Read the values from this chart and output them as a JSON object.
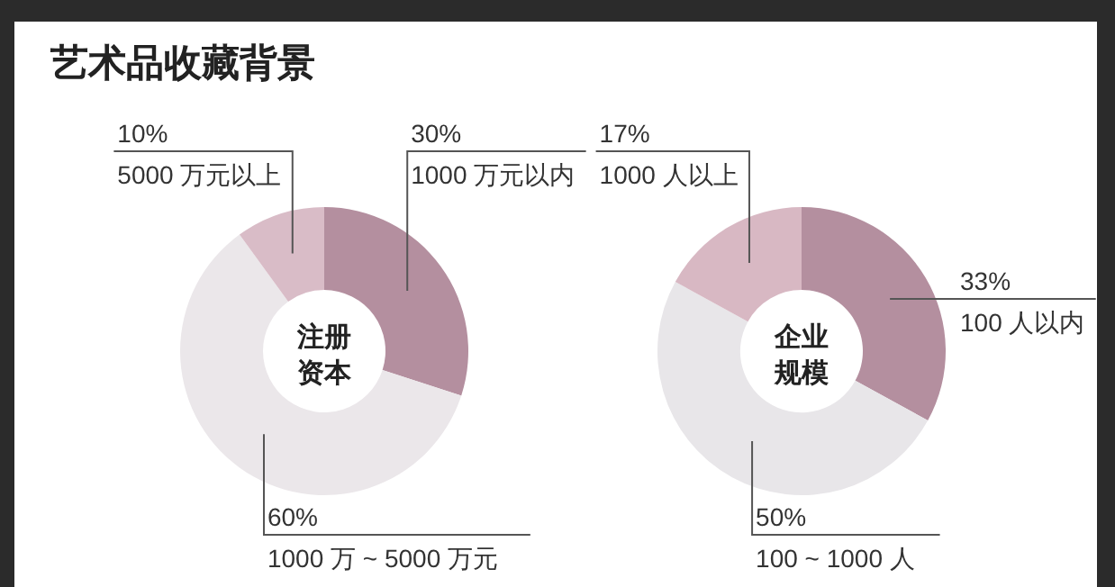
{
  "chart_data": [
    {
      "type": "donut",
      "title": "艺术品收藏背景",
      "annotations": [
        "注册资本"
      ],
      "categories": [
        "1000 万元以内",
        "1000 万 ~ 5000 万元",
        "5000 万元以上"
      ],
      "values": [
        30,
        60,
        10
      ],
      "value_labels": [
        "30%",
        "60%",
        "10%"
      ],
      "colors": [
        "#b48f9f",
        "#ebe7ea",
        "#d9bcc7"
      ]
    },
    {
      "type": "donut",
      "annotations": [
        "企业规模"
      ],
      "categories": [
        "100 人以内",
        "100 ~ 1000 人",
        "1000 人以上"
      ],
      "values": [
        33,
        50,
        17
      ],
      "value_labels": [
        "33%",
        "50%",
        "17%"
      ],
      "colors": [
        "#b48f9f",
        "#e8e6e9",
        "#d8b8c3"
      ]
    }
  ]
}
